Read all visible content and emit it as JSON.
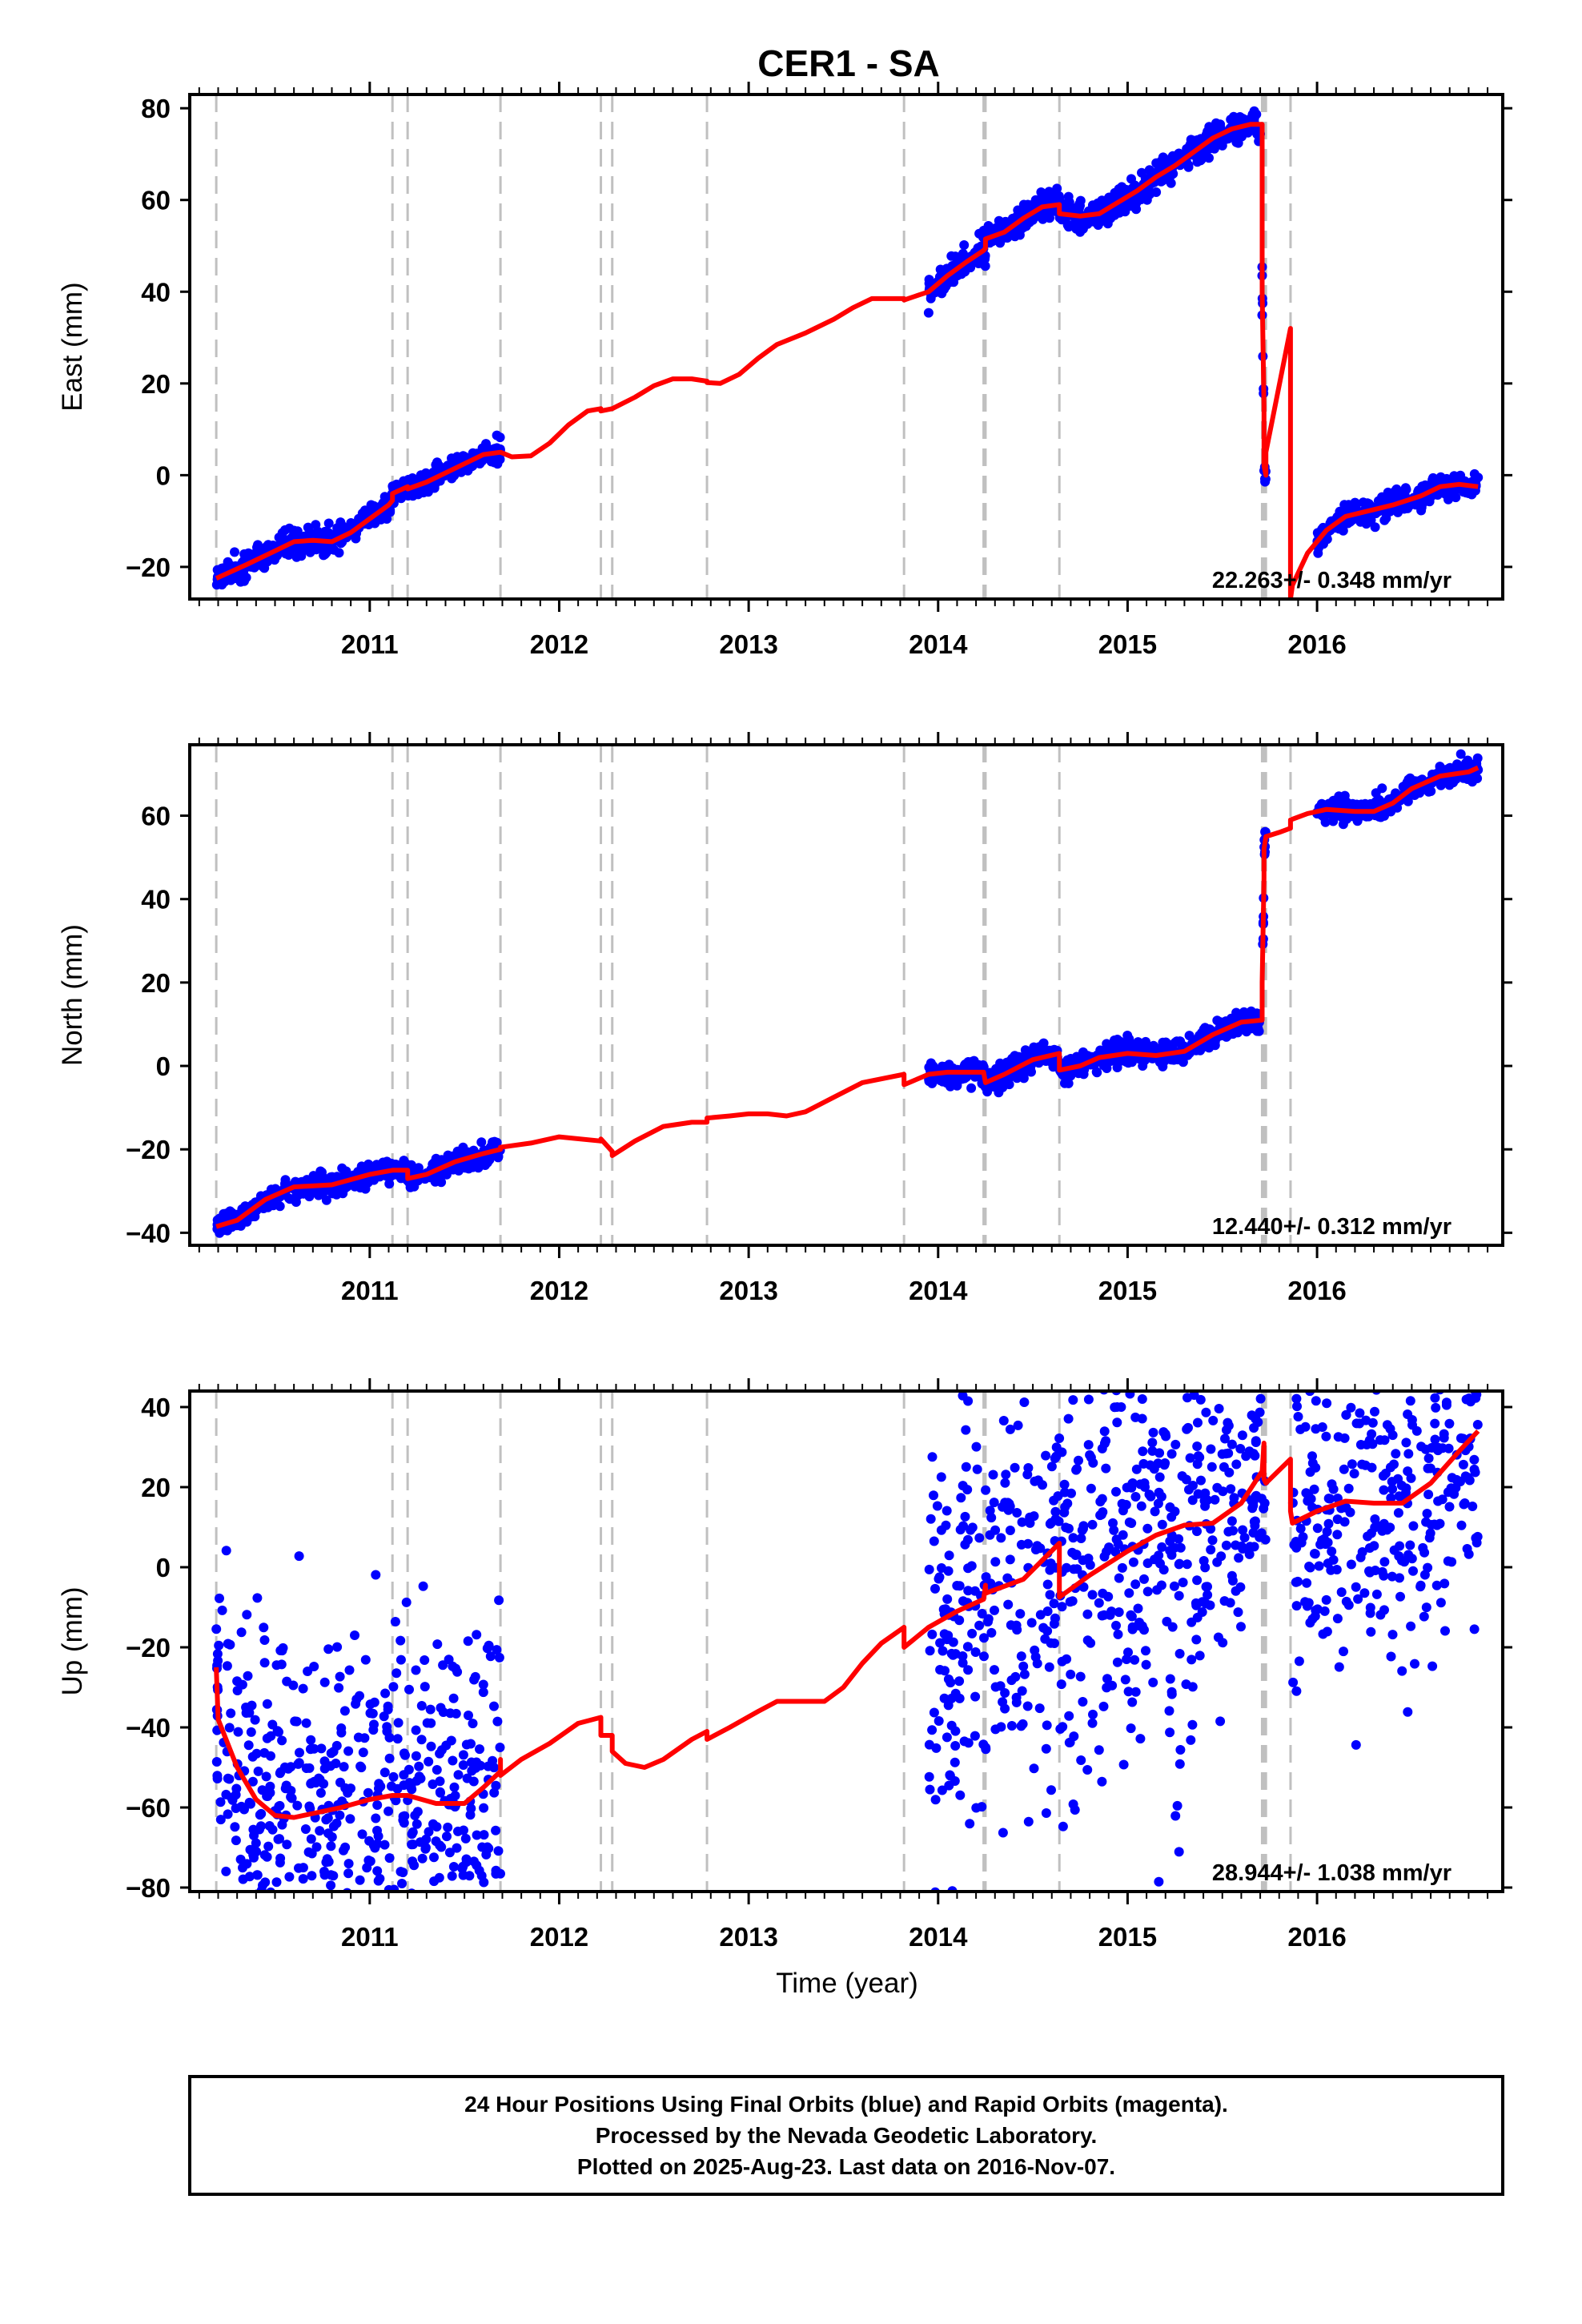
{
  "chart_data": {
    "type": "scatter",
    "title": "CER1 - SA",
    "xlabel": "Time (year)",
    "xlim": [
      2010.05,
      2016.98
    ],
    "x_ticks": [
      2011,
      2012,
      2013,
      2014,
      2015,
      2016
    ],
    "x_tick_labels": [
      "2011",
      "2012",
      "2013",
      "2014",
      "2015",
      "2016"
    ],
    "legend": "none",
    "grid": false,
    "event_lines_x": [
      2010.19,
      2011.12,
      2011.2,
      2011.69,
      2012.22,
      2012.28,
      2012.78,
      2013.82,
      2014.24,
      2014.25,
      2014.64,
      2015.71,
      2015.72,
      2015.73,
      2015.86
    ],
    "panels": [
      {
        "ylabel": "East (mm)",
        "ylim": [
          -27,
          83
        ],
        "y_ticks": [
          -20,
          0,
          20,
          40,
          60,
          80
        ],
        "y_tick_labels": [
          "−20",
          "0",
          "20",
          "40",
          "60",
          "80"
        ],
        "rate_text": "22.263+/- 0.348 mm/yr",
        "scatter_scale": 1.2,
        "model_line": [
          [
            2010.19,
            -22.5
          ],
          [
            2010.35,
            -19.5
          ],
          [
            2010.5,
            -16.5
          ],
          [
            2010.6,
            -14.5
          ],
          [
            2010.7,
            -14.2
          ],
          [
            2010.8,
            -14.5
          ],
          [
            2010.9,
            -12.5
          ],
          [
            2011.0,
            -9.5
          ],
          [
            2011.1,
            -6.5
          ],
          [
            2011.12,
            -5.5
          ],
          [
            2011.12,
            -4
          ],
          [
            2011.2,
            -2.5
          ],
          [
            2011.2,
            -3
          ],
          [
            2011.3,
            -1.5
          ],
          [
            2011.45,
            1.5
          ],
          [
            2011.6,
            4.5
          ],
          [
            2011.69,
            5
          ],
          [
            2011.69,
            5
          ],
          [
            2011.75,
            4
          ],
          [
            2011.85,
            4.2
          ],
          [
            2011.95,
            7
          ],
          [
            2012.05,
            11
          ],
          [
            2012.15,
            14
          ],
          [
            2012.22,
            14.5
          ],
          [
            2012.22,
            14
          ],
          [
            2012.28,
            14.5
          ],
          [
            2012.28,
            14.5
          ],
          [
            2012.4,
            17
          ],
          [
            2012.5,
            19.5
          ],
          [
            2012.6,
            21
          ],
          [
            2012.7,
            21
          ],
          [
            2012.78,
            20.5
          ],
          [
            2012.78,
            20.2
          ],
          [
            2012.85,
            20
          ],
          [
            2012.95,
            22
          ],
          [
            2013.05,
            25.5
          ],
          [
            2013.15,
            28.5
          ],
          [
            2013.3,
            31
          ],
          [
            2013.45,
            34
          ],
          [
            2013.55,
            36.5
          ],
          [
            2013.65,
            38.5
          ],
          [
            2013.82,
            38.5
          ],
          [
            2013.82,
            38.2
          ],
          [
            2013.95,
            40
          ],
          [
            2014.05,
            43.5
          ],
          [
            2014.15,
            46.5
          ],
          [
            2014.24,
            49
          ],
          [
            2014.25,
            49.5
          ],
          [
            2014.25,
            51.5
          ],
          [
            2014.35,
            53
          ],
          [
            2014.45,
            56
          ],
          [
            2014.55,
            58.5
          ],
          [
            2014.64,
            59
          ],
          [
            2014.64,
            57
          ],
          [
            2014.75,
            56.5
          ],
          [
            2014.85,
            57
          ],
          [
            2014.95,
            59.5
          ],
          [
            2015.05,
            62
          ],
          [
            2015.15,
            65
          ],
          [
            2015.25,
            67.5
          ],
          [
            2015.35,
            70.5
          ],
          [
            2015.45,
            73.5
          ],
          [
            2015.55,
            75.5
          ],
          [
            2015.65,
            76.5
          ],
          [
            2015.71,
            76.5
          ],
          [
            2015.71,
            40
          ],
          [
            2015.72,
            15
          ],
          [
            2015.72,
            2
          ],
          [
            2015.73,
            0
          ],
          [
            2015.73,
            5
          ],
          [
            2015.86,
            32
          ],
          [
            2015.86,
            -27
          ],
          [
            2015.87,
            -24
          ],
          [
            2015.95,
            -17
          ],
          [
            2016.05,
            -12
          ],
          [
            2016.15,
            -9
          ],
          [
            2016.25,
            -8
          ],
          [
            2016.4,
            -6.5
          ],
          [
            2016.55,
            -4.5
          ],
          [
            2016.65,
            -2.5
          ],
          [
            2016.75,
            -2
          ],
          [
            2016.85,
            -2.5
          ]
        ],
        "data_segments": [
          {
            "start": 2010.19,
            "end": 2011.69,
            "n": 520,
            "scatter": 1.4
          },
          {
            "start": 2013.95,
            "end": 2015.7,
            "n": 620,
            "scatter": 1.6
          },
          {
            "start": 2015.71,
            "end": 2015.73,
            "n": 14,
            "scatter": 4
          },
          {
            "start": 2016.0,
            "end": 2016.85,
            "n": 300,
            "scatter": 1.3
          }
        ]
      },
      {
        "ylabel": "North (mm)",
        "ylim": [
          -43,
          77
        ],
        "y_ticks": [
          -40,
          -20,
          0,
          20,
          40,
          60
        ],
        "y_tick_labels": [
          "−40",
          "−20",
          "0",
          "20",
          "40",
          "60"
        ],
        "rate_text": "12.440+/- 0.312 mm/yr",
        "scatter_scale": 1.2,
        "model_line": [
          [
            2010.19,
            -38.5
          ],
          [
            2010.3,
            -37
          ],
          [
            2010.45,
            -32
          ],
          [
            2010.6,
            -29
          ],
          [
            2010.8,
            -28.5
          ],
          [
            2011.0,
            -26
          ],
          [
            2011.12,
            -25
          ],
          [
            2011.12,
            -25
          ],
          [
            2011.2,
            -25
          ],
          [
            2011.2,
            -27
          ],
          [
            2011.3,
            -26
          ],
          [
            2011.45,
            -23
          ],
          [
            2011.6,
            -21
          ],
          [
            2011.69,
            -20
          ],
          [
            2011.69,
            -19.5
          ],
          [
            2011.85,
            -18.5
          ],
          [
            2012.0,
            -17
          ],
          [
            2012.22,
            -18
          ],
          [
            2012.22,
            -17.5
          ],
          [
            2012.28,
            -20.5
          ],
          [
            2012.28,
            -21.5
          ],
          [
            2012.4,
            -18
          ],
          [
            2012.55,
            -14.5
          ],
          [
            2012.7,
            -13.5
          ],
          [
            2012.78,
            -13.5
          ],
          [
            2012.78,
            -12.5
          ],
          [
            2012.9,
            -12
          ],
          [
            2013.0,
            -11.5
          ],
          [
            2013.1,
            -11.5
          ],
          [
            2013.2,
            -12
          ],
          [
            2013.3,
            -11
          ],
          [
            2013.45,
            -7.5
          ],
          [
            2013.6,
            -4
          ],
          [
            2013.82,
            -2
          ],
          [
            2013.82,
            -4.5
          ],
          [
            2013.95,
            -2
          ],
          [
            2014.05,
            -1.5
          ],
          [
            2014.2,
            -1.5
          ],
          [
            2014.24,
            -1.5
          ],
          [
            2014.25,
            -4
          ],
          [
            2014.35,
            -2
          ],
          [
            2014.5,
            1.5
          ],
          [
            2014.64,
            3
          ],
          [
            2014.64,
            -1
          ],
          [
            2014.75,
            0
          ],
          [
            2014.85,
            2
          ],
          [
            2015.0,
            3
          ],
          [
            2015.15,
            2.5
          ],
          [
            2015.3,
            3.5
          ],
          [
            2015.45,
            7.5
          ],
          [
            2015.6,
            10.5
          ],
          [
            2015.71,
            11
          ],
          [
            2015.71,
            20
          ],
          [
            2015.72,
            45
          ],
          [
            2015.72,
            52
          ],
          [
            2015.73,
            55
          ],
          [
            2015.8,
            56
          ],
          [
            2015.86,
            57
          ],
          [
            2015.86,
            59
          ],
          [
            2015.95,
            60.5
          ],
          [
            2016.05,
            61.5
          ],
          [
            2016.2,
            61
          ],
          [
            2016.3,
            61
          ],
          [
            2016.4,
            63
          ],
          [
            2016.5,
            66.5
          ],
          [
            2016.65,
            69.5
          ],
          [
            2016.8,
            70.5
          ],
          [
            2016.85,
            71.5
          ]
        ],
        "data_segments": [
          {
            "start": 2010.19,
            "end": 2011.69,
            "n": 520,
            "scatter": 1.3
          },
          {
            "start": 2013.95,
            "end": 2015.7,
            "n": 620,
            "scatter": 1.5
          },
          {
            "start": 2015.71,
            "end": 2015.73,
            "n": 14,
            "scatter": 2
          },
          {
            "start": 2016.0,
            "end": 2016.85,
            "n": 300,
            "scatter": 1.3
          }
        ]
      },
      {
        "ylabel": "Up (mm)",
        "ylim": [
          -81,
          44
        ],
        "y_ticks": [
          -80,
          -60,
          -40,
          -20,
          0,
          20,
          40
        ],
        "y_tick_labels": [
          "−80",
          "−60",
          "−40",
          "−20",
          "0",
          "20",
          "40"
        ],
        "rate_text": "28.944+/- 1.038 mm/yr",
        "scatter_scale": 5.5,
        "model_line": [
          [
            2010.19,
            -25
          ],
          [
            2010.2,
            -38
          ],
          [
            2010.3,
            -50
          ],
          [
            2010.4,
            -58
          ],
          [
            2010.5,
            -62
          ],
          [
            2010.6,
            -62.5
          ],
          [
            2010.7,
            -61.5
          ],
          [
            2010.85,
            -60
          ],
          [
            2011.0,
            -58
          ],
          [
            2011.12,
            -57
          ],
          [
            2011.12,
            -57
          ],
          [
            2011.2,
            -57
          ],
          [
            2011.2,
            -57
          ],
          [
            2011.35,
            -59
          ],
          [
            2011.5,
            -59
          ],
          [
            2011.6,
            -55
          ],
          [
            2011.69,
            -51
          ],
          [
            2011.69,
            -48
          ],
          [
            2011.69,
            -52
          ],
          [
            2011.8,
            -48
          ],
          [
            2011.95,
            -44
          ],
          [
            2012.1,
            -39
          ],
          [
            2012.22,
            -37.5
          ],
          [
            2012.22,
            -42
          ],
          [
            2012.28,
            -42
          ],
          [
            2012.28,
            -46
          ],
          [
            2012.35,
            -49
          ],
          [
            2012.45,
            -50
          ],
          [
            2012.55,
            -48
          ],
          [
            2012.7,
            -43
          ],
          [
            2012.78,
            -41
          ],
          [
            2012.78,
            -43
          ],
          [
            2012.9,
            -40
          ],
          [
            2013.05,
            -36
          ],
          [
            2013.15,
            -33.5
          ],
          [
            2013.3,
            -33.5
          ],
          [
            2013.4,
            -33.5
          ],
          [
            2013.5,
            -30
          ],
          [
            2013.6,
            -24
          ],
          [
            2013.7,
            -19
          ],
          [
            2013.82,
            -15
          ],
          [
            2013.82,
            -20
          ],
          [
            2013.95,
            -15
          ],
          [
            2014.1,
            -11
          ],
          [
            2014.24,
            -8
          ],
          [
            2014.25,
            -4.5
          ],
          [
            2014.25,
            -6.5
          ],
          [
            2014.45,
            -3
          ],
          [
            2014.64,
            6
          ],
          [
            2014.64,
            -7.5
          ],
          [
            2014.8,
            -2
          ],
          [
            2015.0,
            4
          ],
          [
            2015.15,
            8
          ],
          [
            2015.3,
            10.5
          ],
          [
            2015.45,
            11
          ],
          [
            2015.6,
            16
          ],
          [
            2015.71,
            24
          ],
          [
            2015.72,
            31
          ],
          [
            2015.72,
            22
          ],
          [
            2015.73,
            21
          ],
          [
            2015.86,
            27
          ],
          [
            2015.86,
            14
          ],
          [
            2015.87,
            11
          ],
          [
            2016.0,
            14
          ],
          [
            2016.15,
            16.5
          ],
          [
            2016.3,
            16
          ],
          [
            2016.45,
            16
          ],
          [
            2016.6,
            21
          ],
          [
            2016.75,
            29
          ],
          [
            2016.85,
            34
          ]
        ],
        "data_segments": [
          {
            "start": 2010.19,
            "end": 2010.2,
            "n": 14,
            "scatter": 4
          },
          {
            "start": 2010.2,
            "end": 2011.69,
            "n": 520,
            "scatter": 5
          },
          {
            "start": 2013.95,
            "end": 2015.6,
            "n": 600,
            "scatter": 6
          },
          {
            "start": 2015.6,
            "end": 2015.73,
            "n": 40,
            "scatter": 2.5
          },
          {
            "start": 2015.87,
            "end": 2016.85,
            "n": 320,
            "scatter": 4.5
          }
        ]
      }
    ],
    "caption_lines": [
      "24 Hour Positions Using Final Orbits (blue) and Rapid Orbits (magenta).",
      "Processed by the Nevada Geodetic Laboratory.",
      "Plotted on 2025-Aug-23. Last data on 2016-Nov-07."
    ]
  },
  "colors": {
    "data_points": "#0000ff",
    "model_line": "#ff0000",
    "event_lines": "#c0c0c0",
    "frame": "#000000"
  }
}
